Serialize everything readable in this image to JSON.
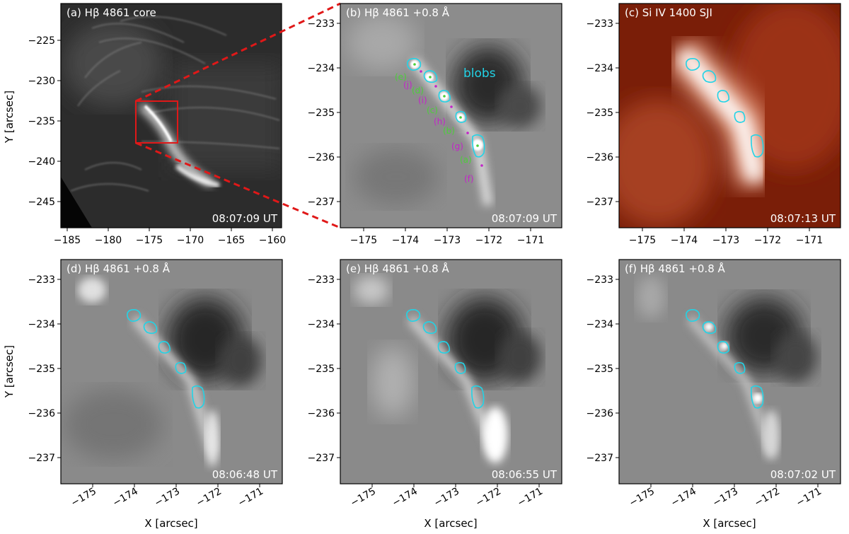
{
  "panels": [
    {
      "id": "a",
      "title": "(a) Hβ 4861 core",
      "time": "08:07:09 UT",
      "type": "core"
    },
    {
      "id": "b",
      "title": "(b) Hβ 4861 +0.8 Å",
      "time": "08:07:09 UT",
      "type": "wing"
    },
    {
      "id": "c",
      "title": "(c) Si IV 1400 SJI",
      "time": "08:07:13 UT",
      "type": "sji"
    },
    {
      "id": "d",
      "title": "(d) Hβ 4861 +0.8 Å",
      "time": "08:06:48 UT",
      "type": "wing"
    },
    {
      "id": "e",
      "title": "(e) Hβ 4861 +0.8 Å",
      "time": "08:06:55 UT",
      "type": "wing"
    },
    {
      "id": "f",
      "title": "(f) Hβ 4861 +0.8 Å",
      "time": "08:07:02 UT",
      "type": "wing"
    }
  ],
  "axes": {
    "ylabel": "Y [arcsec]",
    "xlabel": "X [arcsec]",
    "a_xticks": [
      "−185",
      "−180",
      "−175",
      "−170",
      "−165",
      "−160"
    ],
    "a_yticks": [
      "−225",
      "−230",
      "−235",
      "−240",
      "−245"
    ],
    "zoom_xticks": [
      "−175",
      "−174",
      "−173",
      "−172",
      "−171"
    ],
    "zoom_yticks": [
      "−233",
      "−234",
      "−235",
      "−236",
      "−237"
    ]
  },
  "annotations": {
    "blobs_label": "blobs",
    "green_labels": [
      "(e)",
      "(d)",
      "(c)",
      "(b)",
      "(a)"
    ],
    "magenta_labels": [
      "(j)",
      "(i)",
      "(h)",
      "(g)",
      "(f)"
    ]
  },
  "colors": {
    "contour": "#22d3e6",
    "green_label": "#4ccf3a",
    "magenta_label": "#c324c9",
    "blobs_label": "#22d3e6",
    "zoom_box": "#e01818"
  }
}
